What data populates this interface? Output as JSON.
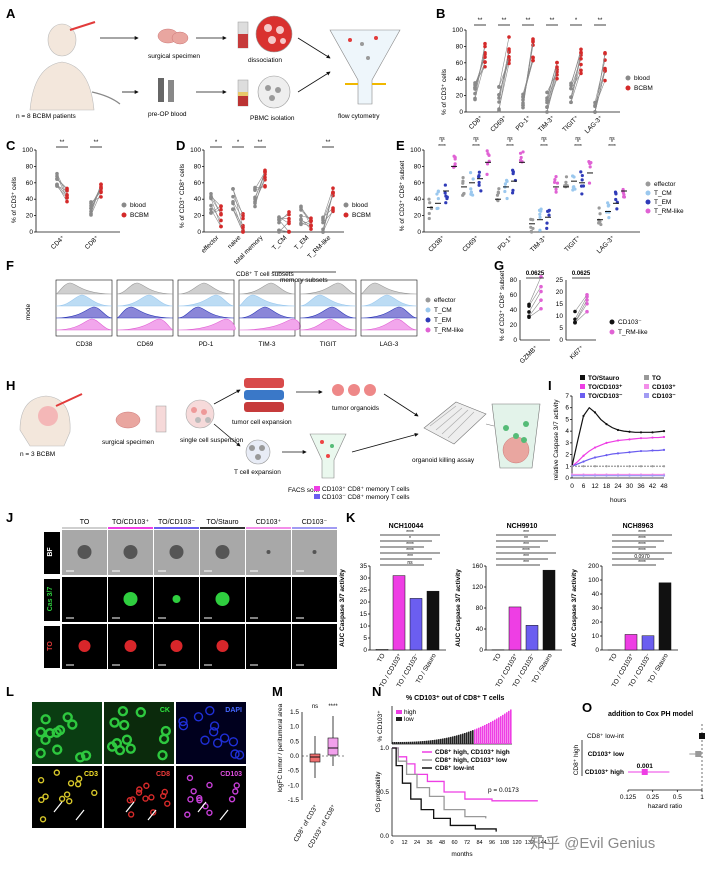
{
  "panels": {
    "A": {
      "label": "A",
      "steps": [
        "surgical specimen",
        "dissociation",
        "pre-OP blood",
        "PBMC isolation",
        "flow cytometry"
      ],
      "patients": "n = 8 BCBM patients"
    },
    "B": {
      "label": "B",
      "ylabel": "% of CD3⁺ cells",
      "categories": [
        "CD8⁺",
        "CD69⁺",
        "PD-1⁺",
        "TIM-3⁺",
        "TIGIT⁺",
        "LAG-3⁺"
      ],
      "sig": [
        "**",
        "**",
        "**",
        "**",
        "*",
        "**"
      ],
      "yticks": [
        "0",
        "20",
        "40",
        "60",
        "80",
        "100"
      ],
      "legend": [
        "blood",
        "BCBM"
      ]
    },
    "C": {
      "label": "C",
      "ylabel": "% of CD3⁺ cells",
      "categories": [
        "CD4⁺",
        "CD8⁺"
      ],
      "sig": [
        "**",
        "**"
      ],
      "yticks": [
        "0",
        "20",
        "40",
        "60",
        "80",
        "100"
      ],
      "legend": [
        "blood",
        "BCBM"
      ]
    },
    "D": {
      "label": "D",
      "ylabel": "% of CD3⁺ CD8⁺ cells",
      "categories": [
        "effector",
        "naive",
        "total memory",
        "T_CM",
        "T_EM",
        "T_RM-like"
      ],
      "sig": [
        "*",
        "*",
        "**",
        "",
        "",
        "**"
      ],
      "group": "memory subsets",
      "yticks": [
        "0",
        "20",
        "40",
        "60",
        "80",
        "100"
      ],
      "legend": [
        "blood",
        "BCBM"
      ]
    },
    "E": {
      "label": "E",
      "ylabel": "% of CD3⁺ CD8⁺ subset",
      "categories": [
        "CD38⁺",
        "CD69⁺",
        "PD-1⁺",
        "TIM-3⁺",
        "TIGIT⁺",
        "LAG-3⁺"
      ],
      "yticks": [
        "0",
        "20",
        "40",
        "60",
        "80",
        "100"
      ],
      "legend": [
        "effector",
        "T_CM",
        "T_EM",
        "T_RM-like"
      ]
    },
    "F": {
      "label": "F",
      "title": "CD8⁺ T cell subsets",
      "ylabel": "mode",
      "markers": [
        "CD38",
        "CD69",
        "PD-1",
        "TIM-3",
        "TIGIT",
        "LAG-3"
      ],
      "legend": [
        "effector",
        "T_CM",
        "T_EM",
        "T_RM-like"
      ]
    },
    "G": {
      "label": "G",
      "ylabel": "% of CD3⁺ CD8⁺ subset",
      "categories": [
        "GZMB⁺",
        "Ki67⁺"
      ],
      "pvalues": [
        "0.0625",
        "0.0625"
      ],
      "legend": [
        "CD103⁻",
        "T_RM-like"
      ]
    },
    "H": {
      "label": "H",
      "patients": "n = 3 BCBM",
      "steps": [
        "surgical specimen",
        "single cell suspension",
        "tumor cell expansion",
        "tumor organoids",
        "T cell expansion",
        "organoid killing assay"
      ],
      "sort_title": "FACS sort:",
      "sort_items": [
        "CD103⁺ CD8⁺ memory T cells",
        "CD103⁻ CD8⁺ memory T cells"
      ]
    },
    "I": {
      "label": "I",
      "ylabel": "relative Caspase 3/7 activity",
      "xlabel": "hours",
      "xticks": [
        "0",
        "6",
        "12",
        "18",
        "24",
        "30",
        "36",
        "42",
        "48"
      ],
      "yticks": [
        "0",
        "1",
        "2",
        "3",
        "4",
        "5",
        "6",
        "7"
      ],
      "legend": [
        "TO/Stauro",
        "TO",
        "TO/CD103⁺",
        "CD103⁺",
        "TO/CD103⁻",
        "CD103⁻"
      ]
    },
    "J": {
      "label": "J",
      "columns": [
        "TO",
        "TO/CD103⁺",
        "TO/CD103⁻",
        "TO/Stauro",
        "CD103⁺",
        "CD103⁻"
      ],
      "rows": [
        "BF",
        "Cas 3/7",
        "TO"
      ]
    },
    "K": {
      "label": "K",
      "ylabel": "AUC Caspase 3/7 activity",
      "categories": [
        "TO",
        "TO / CD103⁺",
        "TO / CD103⁻",
        "TO / Stauro"
      ],
      "charts": [
        {
          "title": "NCH10044",
          "values": [
            0.3,
            31,
            21.5,
            24.5
          ],
          "yticks": [
            "0",
            "5",
            "10",
            "15",
            "20",
            "25",
            "30",
            "35"
          ],
          "sig": [
            "****",
            "*",
            "****",
            "****",
            "***",
            "ns"
          ]
        },
        {
          "title": "NCH9910",
          "values": [
            0.5,
            82,
            47,
            152
          ],
          "yticks": [
            "0",
            "40",
            "80",
            "120",
            "160"
          ],
          "sig": [
            "***",
            "**",
            "***",
            "****",
            "***",
            "***"
          ]
        },
        {
          "title": "NCH8963",
          "values": [
            0.3,
            37,
            34,
            160
          ],
          "yticks": [
            "0",
            "10",
            "20",
            "30",
            "40",
            "100",
            "200"
          ],
          "sig": [
            "****",
            "****",
            "****",
            "****",
            "0.0970",
            "****"
          ]
        }
      ]
    },
    "L": {
      "label": "L",
      "channels": [
        "CK",
        "DAPI",
        "CD3",
        "CD8",
        "CD103"
      ]
    },
    "M": {
      "label": "M",
      "ylabel": "logFC tumor / peritumoral area",
      "categories": [
        "CD8⁺ of CD3⁺",
        "CD103⁺ of CD8⁺"
      ],
      "sig": [
        "ns",
        "****"
      ],
      "yticks": [
        "-1.5",
        "-1.0",
        "-0.5",
        "0.0",
        "0.5",
        "1.0",
        "1.5"
      ]
    },
    "N": {
      "label": "N",
      "title": "% CD103⁺ out of CD8⁺ T cells",
      "ylabel_top": "% CD103⁺",
      "ylabel_bottom": "OS probability",
      "xlabel": "months",
      "xticks": [
        "0",
        "12",
        "24",
        "36",
        "48",
        "60",
        "72",
        "84",
        "96",
        "108",
        "120",
        "132",
        "144"
      ],
      "legend_top": [
        "high",
        "low"
      ],
      "legend_bottom": [
        "CD8⁺ high, CD103⁺ high",
        "CD8⁺ high, CD103⁺ low",
        "CD8⁺ low-int"
      ],
      "pvalue": "p = 0.0173"
    },
    "O": {
      "label": "O",
      "title": "addition to Cox PH model",
      "rows": [
        "CD8⁺ low-int",
        "CD103⁺ low",
        "CD103⁺ high"
      ],
      "row_group": "CD8⁺ high",
      "xticks": [
        "0.125",
        "0.25",
        "0.5",
        "1"
      ],
      "xlabel": "hazard ratio",
      "pvalue": "0.001",
      "watermark": "知乎 @Evil Genius"
    }
  },
  "colors": {
    "blood": "#8a8a8a",
    "bcbm": "#d42a2a",
    "effector": "#9a9a9a",
    "tcm": "#9bc8ee",
    "tem": "#2f3bb8",
    "trm": "#e062d4",
    "pink": "#ee3ee4",
    "purple": "#6b5ef0"
  },
  "chart_data": [
    {
      "type": "bar",
      "title": "NCH10044",
      "categories": [
        "TO",
        "TO / CD103⁺",
        "TO / CD103⁻",
        "TO / Stauro"
      ],
      "values": [
        0.3,
        31,
        21.5,
        24.5
      ],
      "ylabel": "AUC Caspase 3/7 activity",
      "ylim": [
        0,
        35
      ]
    },
    {
      "type": "bar",
      "title": "NCH9910",
      "categories": [
        "TO",
        "TO / CD103⁺",
        "TO / CD103⁻",
        "TO / Stauro"
      ],
      "values": [
        0.5,
        82,
        47,
        152
      ],
      "ylabel": "AUC Caspase 3/7 activity",
      "ylim": [
        0,
        160
      ]
    },
    {
      "type": "bar",
      "title": "NCH8963",
      "categories": [
        "TO",
        "TO / CD103⁺",
        "TO / CD103⁻",
        "TO / Stauro"
      ],
      "values": [
        0.3,
        37,
        34,
        160
      ],
      "ylabel": "AUC Caspase 3/7 activity",
      "ylim": [
        0,
        200
      ]
    },
    {
      "type": "line",
      "xlabel": "hours",
      "ylabel": "relative Caspase 3/7 activity",
      "x": [
        0,
        3,
        6,
        9,
        12,
        15,
        18,
        21,
        24,
        27,
        30,
        33,
        36,
        39,
        42,
        45,
        48
      ],
      "ylim": [
        0,
        7
      ],
      "series": [
        {
          "name": "TO/Stauro",
          "values": [
            1.0,
            3.2,
            5.3,
            6.0,
            5.6,
            5.0,
            4.6,
            4.3,
            4.1,
            4.0,
            3.95,
            3.9,
            3.9,
            3.9,
            3.9,
            3.95,
            4.0
          ]
        },
        {
          "name": "TO/CD103⁺",
          "values": [
            1.0,
            1.4,
            1.9,
            2.3,
            2.6,
            2.8,
            3.0,
            3.1,
            3.2,
            3.25,
            3.3,
            3.35,
            3.4,
            3.4,
            3.45,
            3.45,
            3.5
          ]
        },
        {
          "name": "TO/CD103⁻",
          "values": [
            1.0,
            1.2,
            1.4,
            1.6,
            1.75,
            1.85,
            1.95,
            2.05,
            2.1,
            2.15,
            2.2,
            2.25,
            2.3,
            2.3,
            2.35,
            2.35,
            2.4
          ]
        },
        {
          "name": "TO",
          "values": [
            1.0,
            1.0,
            1.0,
            1.0,
            1.0,
            1.0,
            1.0,
            1.0,
            1.0,
            1.0,
            1.0,
            1.0,
            1.0,
            1.0,
            1.0,
            1.0,
            1.0
          ]
        },
        {
          "name": "CD103⁺",
          "values": [
            0.3,
            0.3,
            0.3,
            0.3,
            0.3,
            0.3,
            0.3,
            0.3,
            0.3,
            0.3,
            0.3,
            0.3,
            0.3,
            0.3,
            0.3,
            0.3,
            0.3
          ]
        },
        {
          "name": "CD103⁻",
          "values": [
            0.2,
            0.2,
            0.2,
            0.2,
            0.2,
            0.2,
            0.2,
            0.2,
            0.2,
            0.2,
            0.2,
            0.2,
            0.2,
            0.2,
            0.2,
            0.2,
            0.2
          ]
        }
      ]
    }
  ]
}
